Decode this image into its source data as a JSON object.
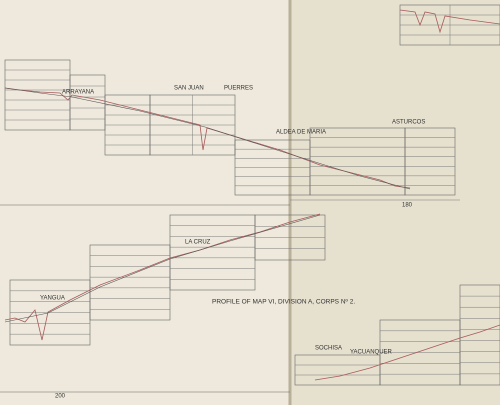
{
  "labels": {
    "arrayana": "ARRAYANA",
    "san_juan": "SAN JUAN",
    "puerres": "PUERRES",
    "aldea": "ALDEA DE MARIA",
    "asturcos": "ASTURCOS",
    "la_cruz": "LA CRUZ",
    "yangua": "YANGUA",
    "sochisa": "SOCHISA",
    "yacuanquer": "YACUANQUER",
    "title": "PROFILE OF MAP VI, DIVISION A, CORPS Nº 2.",
    "mark_top": "180",
    "mark_bottom": "200"
  }
}
